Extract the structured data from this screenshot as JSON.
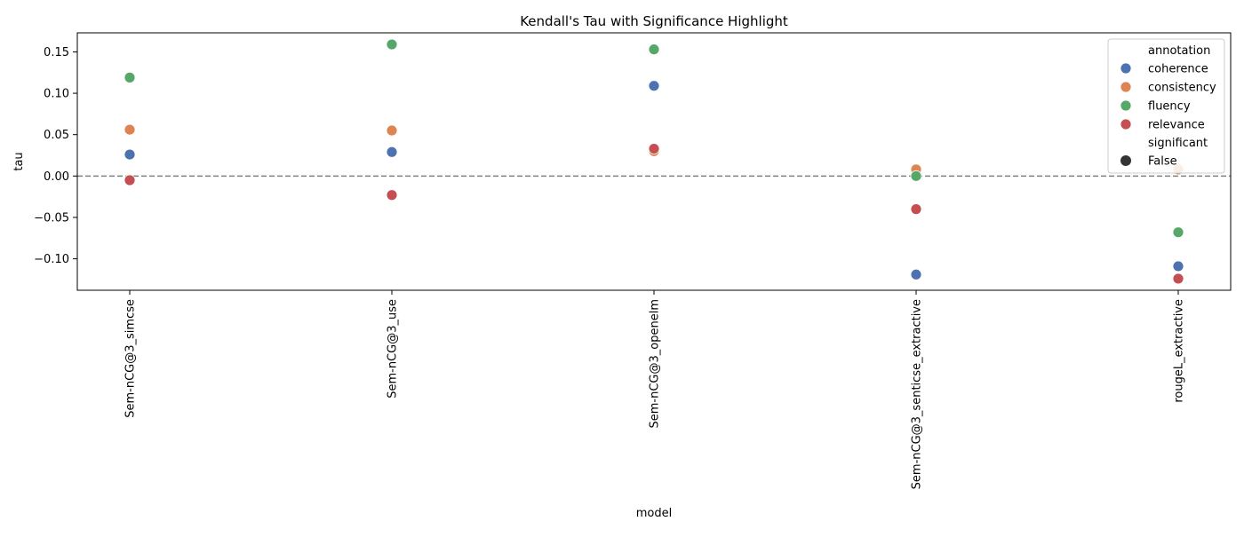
{
  "chart_data": {
    "type": "scatter",
    "title": "Kendall's Tau with Significance Highlight",
    "xlabel": "model",
    "ylabel": "tau",
    "categories": [
      "Sem-nCG@3_simcse",
      "Sem-nCG@3_use",
      "Sem-nCG@3_openelm",
      "Sem-nCG@3_senticse_extractive",
      "rougeL_extractive"
    ],
    "ylim": [
      -0.138,
      0.173
    ],
    "yticks": [
      -0.1,
      -0.05,
      0.0,
      0.05,
      0.1,
      0.15
    ],
    "ytick_labels": [
      "−0.10",
      "−0.05",
      "0.00",
      "0.05",
      "0.10",
      "0.15"
    ],
    "reference_line": {
      "y": 0.0,
      "style": "dashed",
      "color": "#808080"
    },
    "grid": false,
    "series": [
      {
        "name": "coherence",
        "color": "#4c72b0",
        "values": [
          0.026,
          0.029,
          0.109,
          -0.119,
          -0.109
        ]
      },
      {
        "name": "consistency",
        "color": "#dd8452",
        "values": [
          0.056,
          0.055,
          0.03,
          0.008,
          0.008
        ]
      },
      {
        "name": "fluency",
        "color": "#55a868",
        "values": [
          0.119,
          0.159,
          0.153,
          0.0,
          -0.068
        ]
      },
      {
        "name": "relevance",
        "color": "#c44e52",
        "values": [
          -0.005,
          -0.023,
          0.033,
          -0.04,
          -0.124
        ]
      }
    ],
    "legend": {
      "position": "top-right",
      "hue_title": "annotation",
      "size_title": "significant",
      "size_entries": [
        "False"
      ],
      "size_marker_color": "#333333"
    }
  }
}
